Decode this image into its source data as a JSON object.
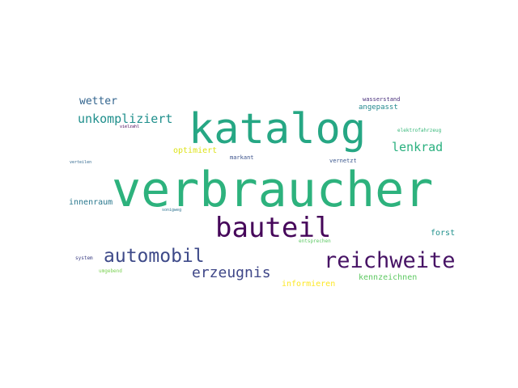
{
  "words": [
    {
      "text": "verbraucher",
      "color": "#2db27d"
    },
    {
      "text": "katalog",
      "color": "#26a784"
    },
    {
      "text": "bauteil",
      "color": "#46075a"
    },
    {
      "text": "reichweite",
      "color": "#471365"
    },
    {
      "text": "automobil",
      "color": "#3e4a89"
    },
    {
      "text": "erzeugnis",
      "color": "#3f4788"
    },
    {
      "text": "unkompliziert",
      "color": "#1f8f8c"
    },
    {
      "text": "lenkrad",
      "color": "#2ab07f"
    },
    {
      "text": "wetter",
      "color": "#32648e"
    },
    {
      "text": "innenraum",
      "color": "#2a788e"
    },
    {
      "text": "angepasst",
      "color": "#23898e"
    },
    {
      "text": "wasserstand",
      "color": "#472d7b"
    },
    {
      "text": "forst",
      "color": "#21918c"
    },
    {
      "text": "kennzeichnen",
      "color": "#5ec962"
    },
    {
      "text": "informieren",
      "color": "#fde725"
    },
    {
      "text": "optimiert",
      "color": "#dde318"
    },
    {
      "text": "markant",
      "color": "#3b528b"
    },
    {
      "text": "vernetzt",
      "color": "#39568c"
    },
    {
      "text": "elektrofahrzeug",
      "color": "#35b779"
    },
    {
      "text": "entsprechen",
      "color": "#5cc863"
    },
    {
      "text": "system",
      "color": "#404387"
    },
    {
      "text": "umgebend",
      "color": "#7ad151"
    },
    {
      "text": "vielzahl",
      "color": "#440154"
    },
    {
      "text": "verteilen",
      "color": "#31688e"
    },
    {
      "text": "sonigweg",
      "color": "#2c728e"
    }
  ]
}
